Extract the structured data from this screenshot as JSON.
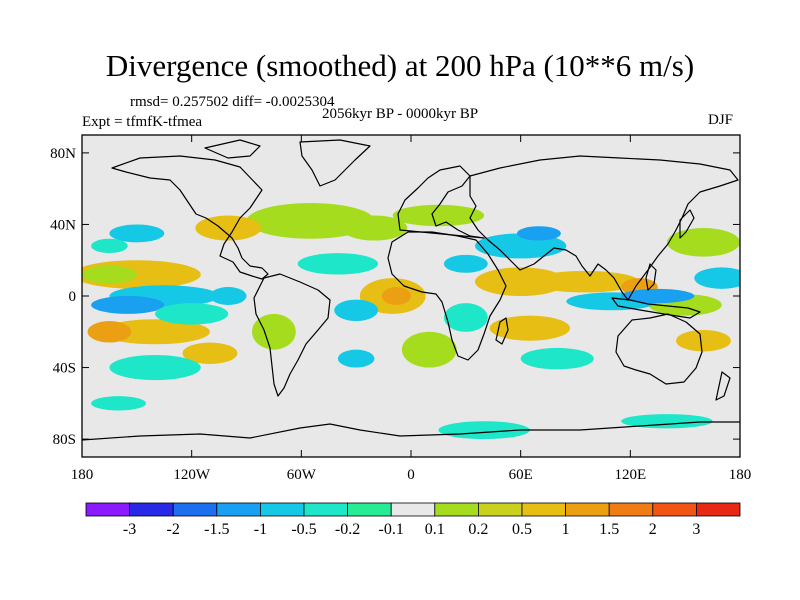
{
  "title": "Divergence (smoothed) at 200 hPa (10**6 m/s)",
  "stats_line": "rmsd= 0.257502 diff= -0.0025304",
  "experiment_line": "Expt = tfmfK-tfmea",
  "period_line": "2056kyr BP - 0000kyr BP",
  "season": "DJF",
  "map": {
    "lon_range": [
      -180,
      180
    ],
    "lat_range": [
      -90,
      90
    ],
    "lat_ticks": [
      {
        "value": 80,
        "label": "80N"
      },
      {
        "value": 40,
        "label": "40N"
      },
      {
        "value": 0,
        "label": "0"
      },
      {
        "value": -40,
        "label": "40S"
      },
      {
        "value": -80,
        "label": "80S"
      }
    ],
    "lon_ticks": [
      {
        "value": -180,
        "label": "180"
      },
      {
        "value": -120,
        "label": "120W"
      },
      {
        "value": -60,
        "label": "60W"
      },
      {
        "value": 0,
        "label": "0"
      },
      {
        "value": 60,
        "label": "60E"
      },
      {
        "value": 120,
        "label": "120E"
      },
      {
        "value": 180,
        "label": "180"
      }
    ],
    "background_color": "#e8e8e8",
    "coastline_color": "#000000"
  },
  "colorbar": {
    "colors": [
      "#8b1aff",
      "#2828e6",
      "#1e6ef0",
      "#19a0f0",
      "#14c8e6",
      "#1ee6c8",
      "#28eb96",
      "#e8e8e8",
      "#a6dc1e",
      "#c8d21e",
      "#e6be14",
      "#eba014",
      "#f07d14",
      "#f05514",
      "#e62814"
    ],
    "labels": [
      "-3",
      "-2",
      "-1.5",
      "-1",
      "-0.5",
      "-0.2",
      "-0.1",
      "0.1",
      "0.2",
      "0.5",
      "1",
      "1.5",
      "2",
      "3"
    ]
  },
  "field_blobs": [
    {
      "lon": -55,
      "lat": 42,
      "rx": 35,
      "ry": 10,
      "color": "#a6dc1e"
    },
    {
      "lon": -20,
      "lat": 38,
      "rx": 18,
      "ry": 7,
      "color": "#a6dc1e"
    },
    {
      "lon": 15,
      "lat": 45,
      "rx": 25,
      "ry": 6,
      "color": "#a6dc1e"
    },
    {
      "lon": -100,
      "lat": 38,
      "rx": 18,
      "ry": 7,
      "color": "#e6be14"
    },
    {
      "lon": -150,
      "lat": 12,
      "rx": 35,
      "ry": 8,
      "color": "#e6be14"
    },
    {
      "lon": -165,
      "lat": 12,
      "rx": 15,
      "ry": 5,
      "color": "#a6dc1e"
    },
    {
      "lon": -140,
      "lat": -20,
      "rx": 30,
      "ry": 7,
      "color": "#e6be14"
    },
    {
      "lon": -165,
      "lat": -20,
      "rx": 12,
      "ry": 6,
      "color": "#eba014"
    },
    {
      "lon": -110,
      "lat": -32,
      "rx": 15,
      "ry": 6,
      "color": "#e6be14"
    },
    {
      "lon": -10,
      "lat": 0,
      "rx": 18,
      "ry": 10,
      "color": "#e6be14"
    },
    {
      "lon": -8,
      "lat": 0,
      "rx": 8,
      "ry": 5,
      "color": "#eba014"
    },
    {
      "lon": 60,
      "lat": 8,
      "rx": 25,
      "ry": 8,
      "color": "#e6be14"
    },
    {
      "lon": 95,
      "lat": 8,
      "rx": 30,
      "ry": 6,
      "color": "#e6be14"
    },
    {
      "lon": 125,
      "lat": 5,
      "rx": 10,
      "ry": 5,
      "color": "#eba014"
    },
    {
      "lon": 65,
      "lat": -18,
      "rx": 22,
      "ry": 7,
      "color": "#e6be14"
    },
    {
      "lon": 150,
      "lat": -5,
      "rx": 20,
      "ry": 6,
      "color": "#a6dc1e"
    },
    {
      "lon": 160,
      "lat": 30,
      "rx": 20,
      "ry": 8,
      "color": "#a6dc1e"
    },
    {
      "lon": -75,
      "lat": -20,
      "rx": 12,
      "ry": 10,
      "color": "#a6dc1e"
    },
    {
      "lon": 10,
      "lat": -30,
      "rx": 15,
      "ry": 10,
      "color": "#a6dc1e"
    },
    {
      "lon": 160,
      "lat": -25,
      "rx": 15,
      "ry": 6,
      "color": "#e6be14"
    },
    {
      "lon": -150,
      "lat": 35,
      "rx": 15,
      "ry": 5,
      "color": "#14c8e6"
    },
    {
      "lon": -165,
      "lat": 28,
      "rx": 10,
      "ry": 4,
      "color": "#1ee6c8"
    },
    {
      "lon": -135,
      "lat": 0,
      "rx": 30,
      "ry": 6,
      "color": "#14c8e6"
    },
    {
      "lon": -155,
      "lat": -5,
      "rx": 20,
      "ry": 5,
      "color": "#19a0f0"
    },
    {
      "lon": -120,
      "lat": -10,
      "rx": 20,
      "ry": 6,
      "color": "#1ee6c8"
    },
    {
      "lon": -140,
      "lat": -40,
      "rx": 25,
      "ry": 7,
      "color": "#1ee6c8"
    },
    {
      "lon": -100,
      "lat": 0,
      "rx": 10,
      "ry": 5,
      "color": "#14c8e6"
    },
    {
      "lon": -40,
      "lat": 18,
      "rx": 22,
      "ry": 6,
      "color": "#1ee6c8"
    },
    {
      "lon": -30,
      "lat": -8,
      "rx": 12,
      "ry": 6,
      "color": "#14c8e6"
    },
    {
      "lon": 30,
      "lat": 18,
      "rx": 12,
      "ry": 5,
      "color": "#14c8e6"
    },
    {
      "lon": 60,
      "lat": 28,
      "rx": 25,
      "ry": 7,
      "color": "#14c8e6"
    },
    {
      "lon": 70,
      "lat": 35,
      "rx": 12,
      "ry": 4,
      "color": "#19a0f0"
    },
    {
      "lon": 110,
      "lat": -3,
      "rx": 25,
      "ry": 5,
      "color": "#14c8e6"
    },
    {
      "lon": 135,
      "lat": 0,
      "rx": 20,
      "ry": 4,
      "color": "#19a0f0"
    },
    {
      "lon": 80,
      "lat": -35,
      "rx": 20,
      "ry": 6,
      "color": "#1ee6c8"
    },
    {
      "lon": 30,
      "lat": -12,
      "rx": 12,
      "ry": 8,
      "color": "#1ee6c8"
    },
    {
      "lon": 170,
      "lat": 10,
      "rx": 15,
      "ry": 6,
      "color": "#14c8e6"
    },
    {
      "lon": -30,
      "lat": -35,
      "rx": 10,
      "ry": 5,
      "color": "#14c8e6"
    },
    {
      "lon": 40,
      "lat": -75,
      "rx": 25,
      "ry": 5,
      "color": "#1ee6c8"
    },
    {
      "lon": 140,
      "lat": -70,
      "rx": 25,
      "ry": 4,
      "color": "#1ee6c8"
    },
    {
      "lon": -160,
      "lat": -60,
      "rx": 15,
      "ry": 4,
      "color": "#1ee6c8"
    }
  ]
}
